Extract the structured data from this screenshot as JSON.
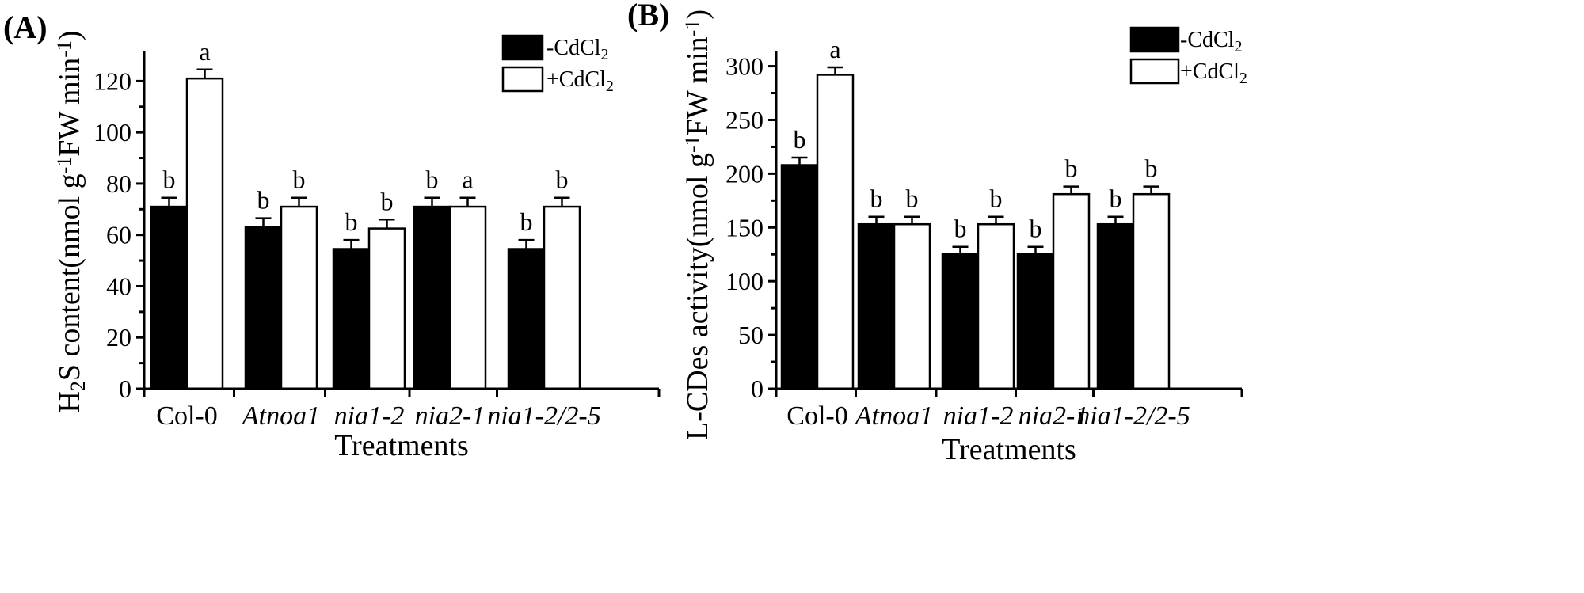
{
  "chart_data": [
    {
      "type": "bar",
      "panel_label": "(A)",
      "categories": [
        "Col-0",
        "Atnoa1",
        "nia1-2",
        "nia2-1",
        "nia1-2/2-5"
      ],
      "categories_italic": [
        false,
        true,
        true,
        true,
        true
      ],
      "series": [
        {
          "name": "-CdCl2",
          "legend_main": "-CdCl",
          "legend_sub": "2",
          "fill": "#000000",
          "values": [
            71,
            63,
            54.5,
            71,
            54.5
          ],
          "errors": [
            3.5,
            3.5,
            3.5,
            3.5,
            3.5
          ],
          "sig": [
            "b",
            "b",
            "b",
            "b",
            "b"
          ]
        },
        {
          "name": "+CdCl2",
          "legend_main": "+CdCl",
          "legend_sub": "2",
          "fill": "#ffffff",
          "values": [
            121,
            71,
            62.5,
            71,
            71
          ],
          "errors": [
            3.5,
            3.5,
            3.5,
            3.5,
            3.5
          ],
          "sig": [
            "a",
            "b",
            "b",
            "a",
            "b"
          ]
        }
      ],
      "xlabel": "Treatments",
      "ylabel": "H2S content(nmol g-1FW min-1)",
      "ylabel_parts": [
        "H",
        "2",
        "S content(nmol g",
        "-1",
        "FW min",
        "-1",
        ")"
      ],
      "ylim": [
        0,
        130
      ],
      "yticks": [
        0,
        20,
        40,
        60,
        80,
        100,
        120
      ],
      "legend_position": "top-right"
    },
    {
      "type": "bar",
      "panel_label": "(B)",
      "categories": [
        "Col-0",
        "Atnoa1",
        "nia1-2",
        "nia2-1",
        "nia1-2/2-5"
      ],
      "categories_italic": [
        false,
        true,
        true,
        true,
        true
      ],
      "series": [
        {
          "name": "-CdCl2",
          "legend_main": "-CdCl",
          "legend_sub": "2",
          "fill": "#000000",
          "values": [
            208,
            153,
            125,
            125,
            153
          ],
          "errors": [
            7,
            7,
            7,
            7,
            7
          ],
          "sig": [
            "b",
            "b",
            "b",
            "b",
            "b"
          ]
        },
        {
          "name": "+CdCl2",
          "legend_main": "+CdCl",
          "legend_sub": "2",
          "fill": "#ffffff",
          "values": [
            292,
            153,
            153,
            181,
            181
          ],
          "errors": [
            7,
            7,
            7,
            7,
            7
          ],
          "sig": [
            "a",
            "b",
            "b",
            "b",
            "b"
          ]
        }
      ],
      "xlabel": "Treatments",
      "ylabel": "L-CDes activity(nmol g-1FW min-1)",
      "ylabel_parts": [
        "L-CDes activity(nmol g",
        "-1",
        "FW min",
        "-1",
        ")"
      ],
      "ylim": [
        0,
        310
      ],
      "yticks": [
        0,
        50,
        100,
        150,
        200,
        250,
        300
      ],
      "legend_position": "top-right"
    }
  ]
}
